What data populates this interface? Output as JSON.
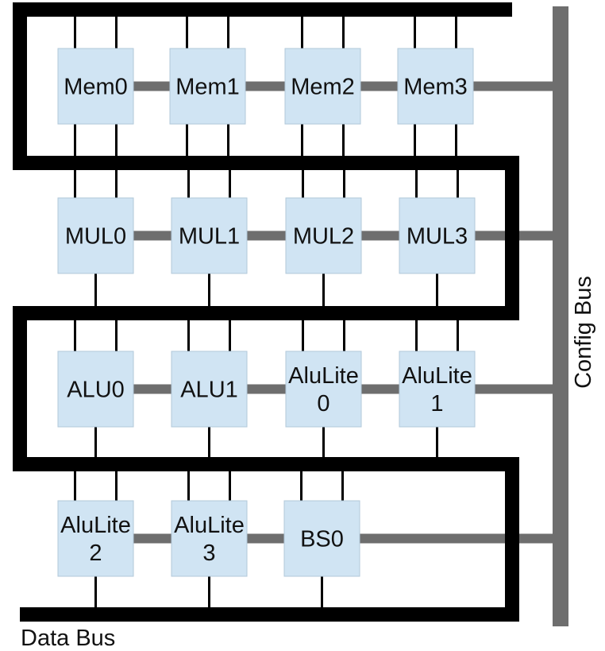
{
  "colors": {
    "data_bus": "#000000",
    "config_bus": "#6e6e6e",
    "unit_fill": "#d0e4f3",
    "link": "#000000"
  },
  "labels": {
    "data_bus": "Data Bus",
    "config_bus": "Config Bus"
  },
  "rows": [
    {
      "units": [
        {
          "lines": [
            "Mem0"
          ]
        },
        {
          "lines": [
            "Mem1"
          ]
        },
        {
          "lines": [
            "Mem2"
          ]
        },
        {
          "lines": [
            "Mem3"
          ]
        }
      ]
    },
    {
      "units": [
        {
          "lines": [
            "MUL0"
          ]
        },
        {
          "lines": [
            "MUL1"
          ]
        },
        {
          "lines": [
            "MUL2"
          ]
        },
        {
          "lines": [
            "MUL3"
          ]
        }
      ]
    },
    {
      "units": [
        {
          "lines": [
            "ALU0"
          ]
        },
        {
          "lines": [
            "ALU1"
          ]
        },
        {
          "lines": [
            "AluLite",
            "0"
          ]
        },
        {
          "lines": [
            "AluLite",
            "1"
          ]
        }
      ]
    },
    {
      "units": [
        {
          "lines": [
            "AluLite",
            "2"
          ]
        },
        {
          "lines": [
            "AluLite",
            "3"
          ]
        },
        {
          "lines": [
            "BS0"
          ]
        }
      ]
    }
  ]
}
